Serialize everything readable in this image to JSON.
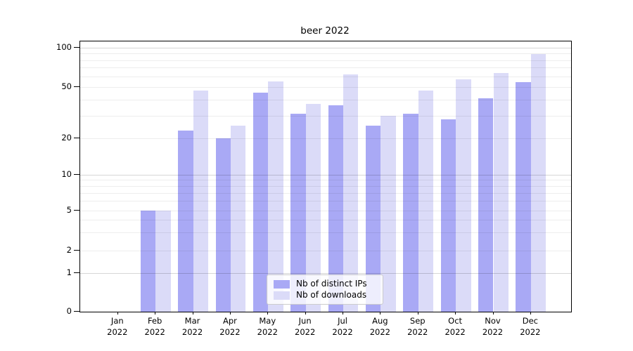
{
  "chart_data": {
    "type": "bar",
    "title": "beer 2022",
    "categories": [
      "Jan 2022",
      "Feb 2022",
      "Mar 2022",
      "Apr 2022",
      "May 2022",
      "Jun 2022",
      "Jul 2022",
      "Aug 2022",
      "Sep 2022",
      "Oct 2022",
      "Nov 2022",
      "Dec 2022"
    ],
    "series": [
      {
        "name": "Nb of distinct IPs",
        "color": "#a9a9f5",
        "values": [
          0,
          5,
          23,
          20,
          45,
          31,
          36,
          25,
          31,
          28,
          41,
          54
        ]
      },
      {
        "name": "Nb of downloads",
        "color": "#dbdbf8",
        "values": [
          0,
          5,
          47,
          25,
          55,
          37,
          62,
          30,
          47,
          57,
          64,
          89
        ]
      }
    ],
    "yscale": "log-like (0,1,2,5,10,20,50,100)",
    "y_tick_values": [
      0,
      1,
      2,
      5,
      10,
      20,
      50,
      100
    ],
    "y_tick_labels": [
      "0",
      "1",
      "2",
      "5",
      "10",
      "20",
      "50",
      "100"
    ],
    "minor_grid_values": [
      2,
      3,
      4,
      5,
      6,
      7,
      8,
      9,
      20,
      30,
      40,
      50,
      60,
      70,
      80,
      90
    ],
    "major_grid_values": [
      1,
      10,
      100
    ],
    "ylim": [
      0,
      110
    ],
    "grid": true,
    "legend_position": "lower center"
  },
  "legend": {
    "items": [
      {
        "label": "Nb of distinct IPs",
        "color": "#a9a9f5"
      },
      {
        "label": "Nb of downloads",
        "color": "#dbdbf8"
      }
    ]
  }
}
